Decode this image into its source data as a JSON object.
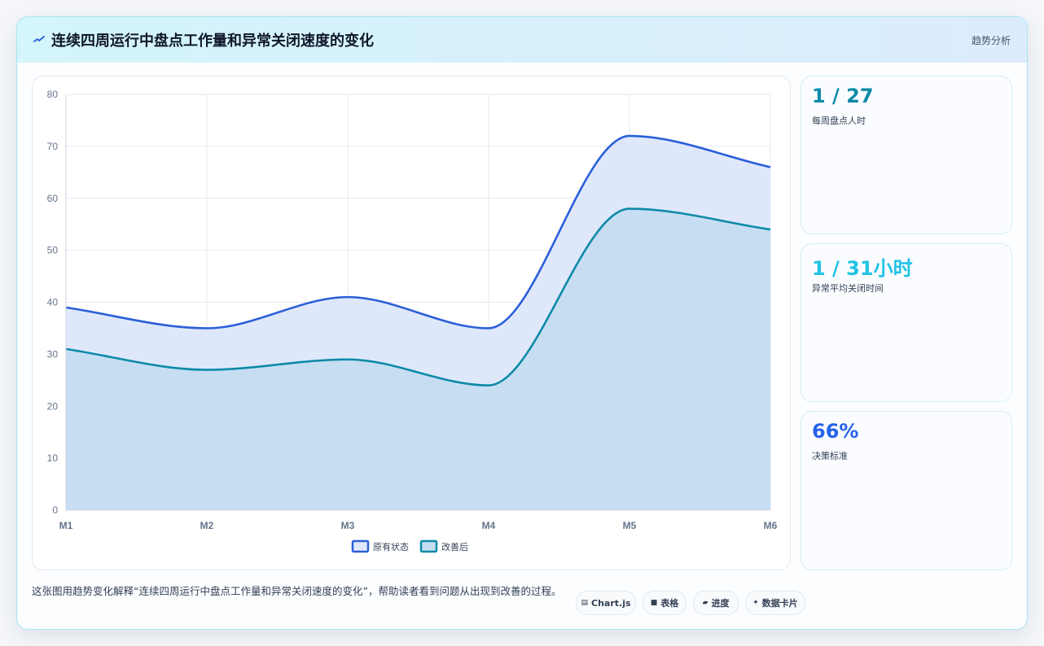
{
  "header": {
    "title": "连续四周运行中盘点工作量和异常关闭速度的变化",
    "tag": "趋势分析",
    "icon": "spark-icon"
  },
  "stats": [
    {
      "value": "1 / 27",
      "label": "每周盘点人时",
      "color": "#0e8aa8"
    },
    {
      "value": "1 / 31小时",
      "label": "异常平均关闭时间",
      "color": "#22c3e6"
    },
    {
      "value": "66%",
      "label": "决策标准",
      "color": "#2563eb"
    }
  ],
  "footer": {
    "description": "这张图用趋势变化解释“连续四周运行中盘点工作量和异常关闭速度的变化”，帮助读者看到问题从出现到改善的过程。",
    "pills": [
      {
        "icon": "chart-icon",
        "glyph": "▤",
        "label": "Chart.js"
      },
      {
        "icon": "table-icon",
        "glyph": "■",
        "label": "表格"
      },
      {
        "icon": "progress-icon",
        "glyph": "▰",
        "label": "进度"
      },
      {
        "icon": "card-icon",
        "glyph": "✦",
        "label": "数据卡片"
      }
    ]
  },
  "chart_data": {
    "type": "area",
    "categories": [
      "M1",
      "M2",
      "M3",
      "M4",
      "M5",
      "M6"
    ],
    "ylim": [
      0,
      80
    ],
    "yticks": [
      0,
      10,
      20,
      30,
      40,
      50,
      60,
      70,
      80
    ],
    "grid": true,
    "legend_position": "bottom",
    "series": [
      {
        "name": "原有状态",
        "values": [
          39,
          35,
          41,
          35,
          72,
          66
        ],
        "color": "#2b5fd9",
        "fill": "#dfe8fb"
      },
      {
        "name": "改善后",
        "values": [
          31,
          27,
          29,
          24,
          58,
          54
        ],
        "color": "#0e8aa8",
        "fill": "#c4dcf1"
      }
    ]
  }
}
